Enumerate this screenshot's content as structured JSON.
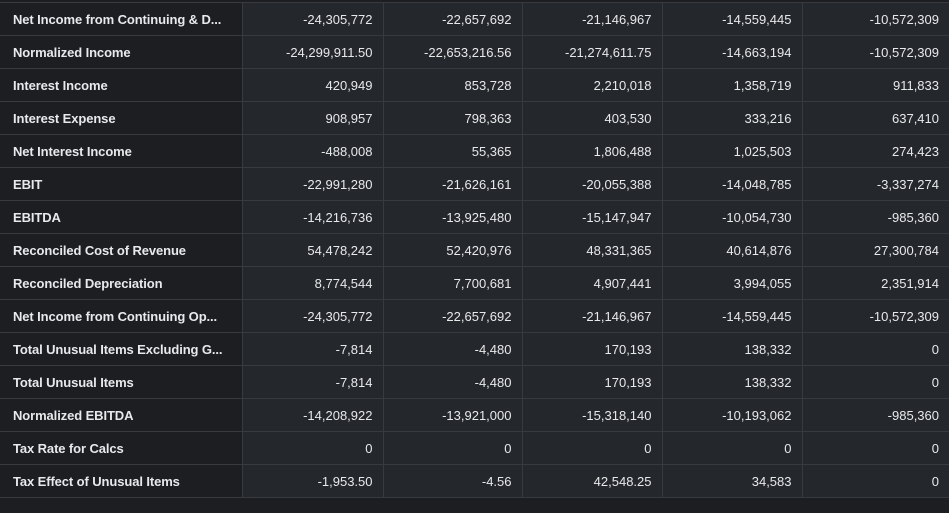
{
  "table": {
    "rows": [
      {
        "label": "Net Income from Continuing & D...",
        "values": [
          "-24,305,772",
          "-22,657,692",
          "-21,146,967",
          "-14,559,445",
          "-10,572,309"
        ]
      },
      {
        "label": "Normalized Income",
        "values": [
          "-24,299,911.50",
          "-22,653,216.56",
          "-21,274,611.75",
          "-14,663,194",
          "-10,572,309"
        ]
      },
      {
        "label": "Interest Income",
        "values": [
          "420,949",
          "853,728",
          "2,210,018",
          "1,358,719",
          "911,833"
        ]
      },
      {
        "label": "Interest Expense",
        "values": [
          "908,957",
          "798,363",
          "403,530",
          "333,216",
          "637,410"
        ]
      },
      {
        "label": "Net Interest Income",
        "values": [
          "-488,008",
          "55,365",
          "1,806,488",
          "1,025,503",
          "274,423"
        ]
      },
      {
        "label": "EBIT",
        "values": [
          "-22,991,280",
          "-21,626,161",
          "-20,055,388",
          "-14,048,785",
          "-3,337,274"
        ]
      },
      {
        "label": "EBITDA",
        "values": [
          "-14,216,736",
          "-13,925,480",
          "-15,147,947",
          "-10,054,730",
          "-985,360"
        ]
      },
      {
        "label": "Reconciled Cost of Revenue",
        "values": [
          "54,478,242",
          "52,420,976",
          "48,331,365",
          "40,614,876",
          "27,300,784"
        ]
      },
      {
        "label": "Reconciled Depreciation",
        "values": [
          "8,774,544",
          "7,700,681",
          "4,907,441",
          "3,994,055",
          "2,351,914"
        ]
      },
      {
        "label": "Net Income from Continuing Op...",
        "values": [
          "-24,305,772",
          "-22,657,692",
          "-21,146,967",
          "-14,559,445",
          "-10,572,309"
        ]
      },
      {
        "label": "Total Unusual Items Excluding G...",
        "values": [
          "-7,814",
          "-4,480",
          "170,193",
          "138,332",
          "0"
        ]
      },
      {
        "label": "Total Unusual Items",
        "values": [
          "-7,814",
          "-4,480",
          "170,193",
          "138,332",
          "0"
        ]
      },
      {
        "label": "Normalized EBITDA",
        "values": [
          "-14,208,922",
          "-13,921,000",
          "-15,318,140",
          "-10,193,062",
          "-985,360"
        ]
      },
      {
        "label": "Tax Rate for Calcs",
        "values": [
          "0",
          "0",
          "0",
          "0",
          "0"
        ]
      },
      {
        "label": "Tax Effect of Unusual Items",
        "values": [
          "-1,953.50",
          "-4.56",
          "42,548.25",
          "34,583",
          "0"
        ]
      }
    ]
  }
}
